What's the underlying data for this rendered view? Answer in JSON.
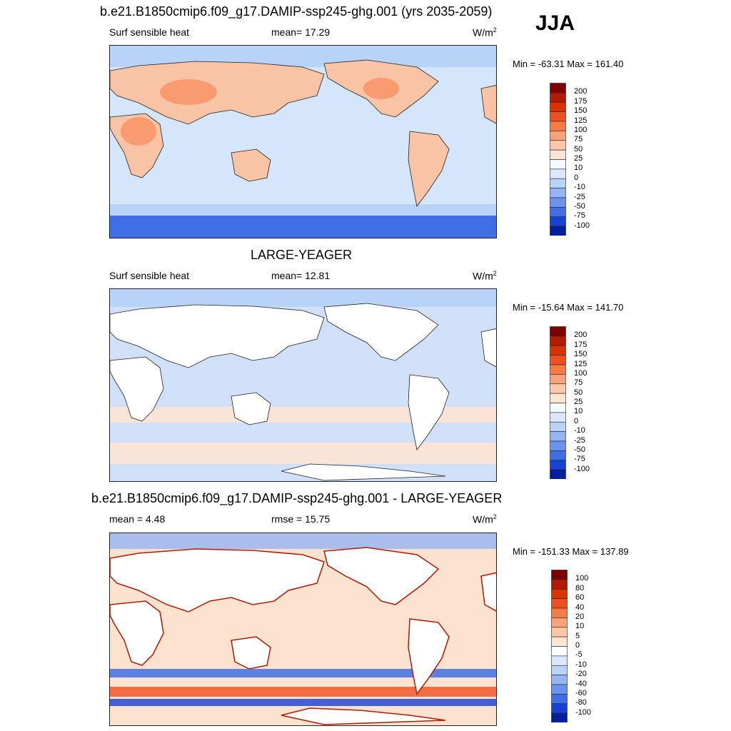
{
  "season": "JJA",
  "panels": [
    {
      "title": "b.e21.B1850cmip6.f09_g17.DAMIP-ssp245-ghg.001 (yrs 2035-2059)",
      "left_label": "Surf sensible heat",
      "center_label": "mean=  17.29",
      "units": "W/m",
      "units_sup": "2",
      "minmax": "Min = -63.31 Max = 161.40",
      "colorbar_labels": [
        "200",
        "175",
        "150",
        "125",
        "100",
        "75",
        "50",
        "25",
        "10",
        "0",
        "-10",
        "-25",
        "-50",
        "-75",
        "-100"
      ],
      "colors": [
        "#7f0000",
        "#b31a00",
        "#d93300",
        "#f05020",
        "#fa7a45",
        "#fba27a",
        "#fdc7a8",
        "#fee4d3",
        "#f4f8ff",
        "#dbe8fb",
        "#b9d2f8",
        "#93b5f4",
        "#6a93ee",
        "#3f6ee6",
        "#1740d6",
        "#001f9c"
      ],
      "ocean_color": "#d6e6fa",
      "land_color": "#f9c4a6"
    },
    {
      "title": "LARGE-YEAGER",
      "left_label": "Surf sensible heat",
      "center_label": "mean=  12.81",
      "units": "W/m",
      "units_sup": "2",
      "minmax": "Min = -15.64 Max = 141.70",
      "colorbar_labels": [
        "200",
        "175",
        "150",
        "125",
        "100",
        "75",
        "50",
        "25",
        "10",
        "0",
        "-10",
        "-25",
        "-50",
        "-75",
        "-100"
      ],
      "colors": [
        "#7f0000",
        "#b31a00",
        "#d93300",
        "#f05020",
        "#fa7a45",
        "#fba27a",
        "#fdc7a8",
        "#fee4d3",
        "#f4f8ff",
        "#dbe8fb",
        "#b9d2f8",
        "#93b5f4",
        "#6a93ee",
        "#3f6ee6",
        "#1740d6",
        "#001f9c"
      ],
      "ocean_color": "#cfe0f8",
      "land_color": "#ffffff"
    },
    {
      "title": "b.e21.B1850cmip6.f09_g17.DAMIP-ssp245-ghg.001 - LARGE-YEAGER",
      "left_label": "mean =   4.48",
      "center_label": "rmse =  15.75",
      "units": "W/m",
      "units_sup": "2",
      "minmax": "Min = -151.33 Max = 137.89",
      "colorbar_labels": [
        "100",
        "80",
        "60",
        "40",
        "20",
        "10",
        "5",
        "0",
        "-5",
        "-10",
        "-20",
        "-40",
        "-60",
        "-80",
        "-100"
      ],
      "colors": [
        "#7f0000",
        "#b31a00",
        "#d93300",
        "#f05020",
        "#fa7a45",
        "#fba27a",
        "#fdc7a8",
        "#fee4d3",
        "#ffffff",
        "#dbe8fb",
        "#b9d2f8",
        "#93b5f4",
        "#6a93ee",
        "#3f6ee6",
        "#1740d6",
        "#001f9c"
      ],
      "ocean_color": "#fde2d0",
      "land_color": "#ffffff"
    }
  ]
}
